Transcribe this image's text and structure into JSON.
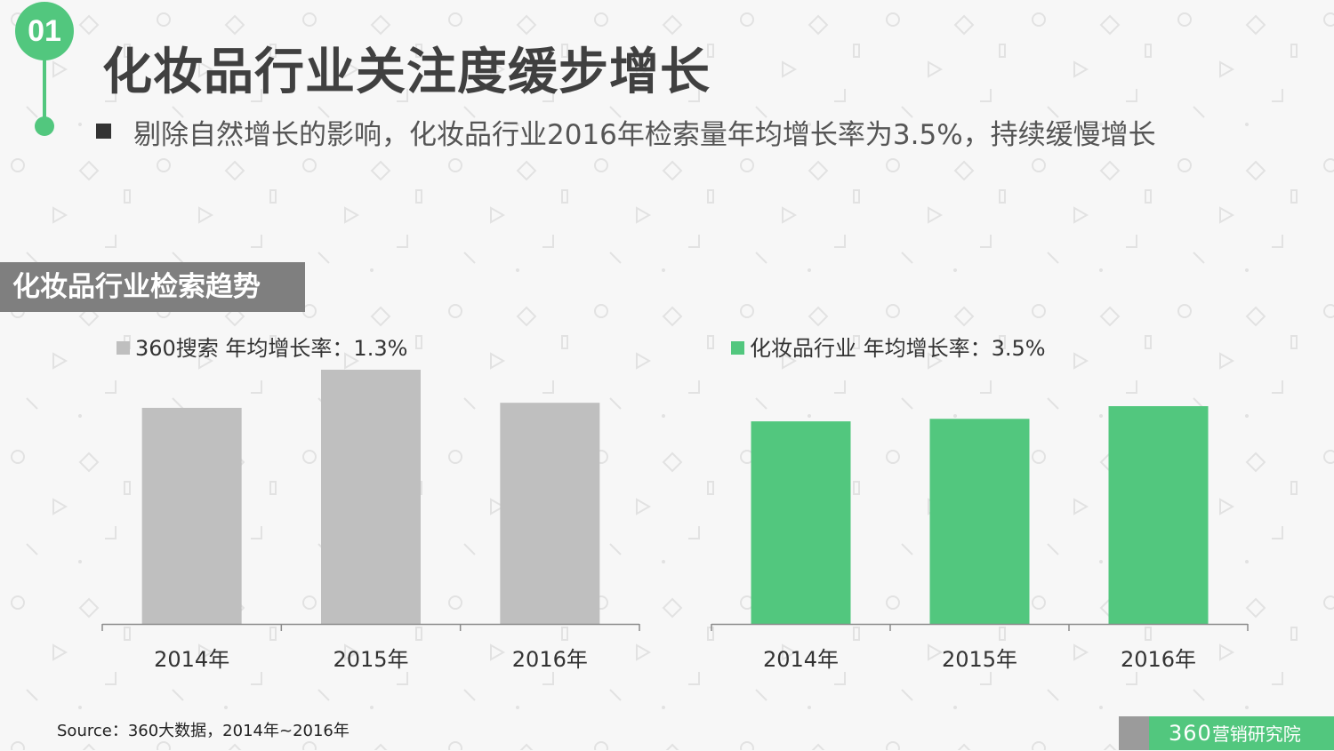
{
  "badge": {
    "number": "01"
  },
  "title": "化妆品行业关注度缓步增长",
  "subtitle": "剔除自然增长的影响，化妆品行业2016年检索量年均增长率为3.5%，持续缓慢增长",
  "section_label": "化妆品行业检索趋势",
  "source": "Source：360大数据，2014年~2016年",
  "brand": {
    "number": "360",
    "text": "营销研究院"
  },
  "colors": {
    "accent": "#52c77e",
    "gray_bar": "#bfbfbf",
    "section_bg": "#7f7f7f"
  },
  "chart_data": [
    {
      "type": "bar",
      "categories": [
        "2014年",
        "2015年",
        "2016年"
      ],
      "series": [
        {
          "name": "360搜索 年均增长率：1.3%",
          "values": [
            85,
            100,
            87
          ],
          "color": "#bfbfbf"
        }
      ],
      "ylim": [
        0,
        100
      ],
      "grid": false,
      "legend": "top-left"
    },
    {
      "type": "bar",
      "categories": [
        "2014年",
        "2015年",
        "2016年"
      ],
      "series": [
        {
          "name": "化妆品行业 年均增长率：3.5%",
          "values": [
            80,
            81,
            86
          ],
          "color": "#52c77e"
        }
      ],
      "ylim": [
        0,
        86
      ],
      "grid": false,
      "legend": "top-left"
    }
  ]
}
